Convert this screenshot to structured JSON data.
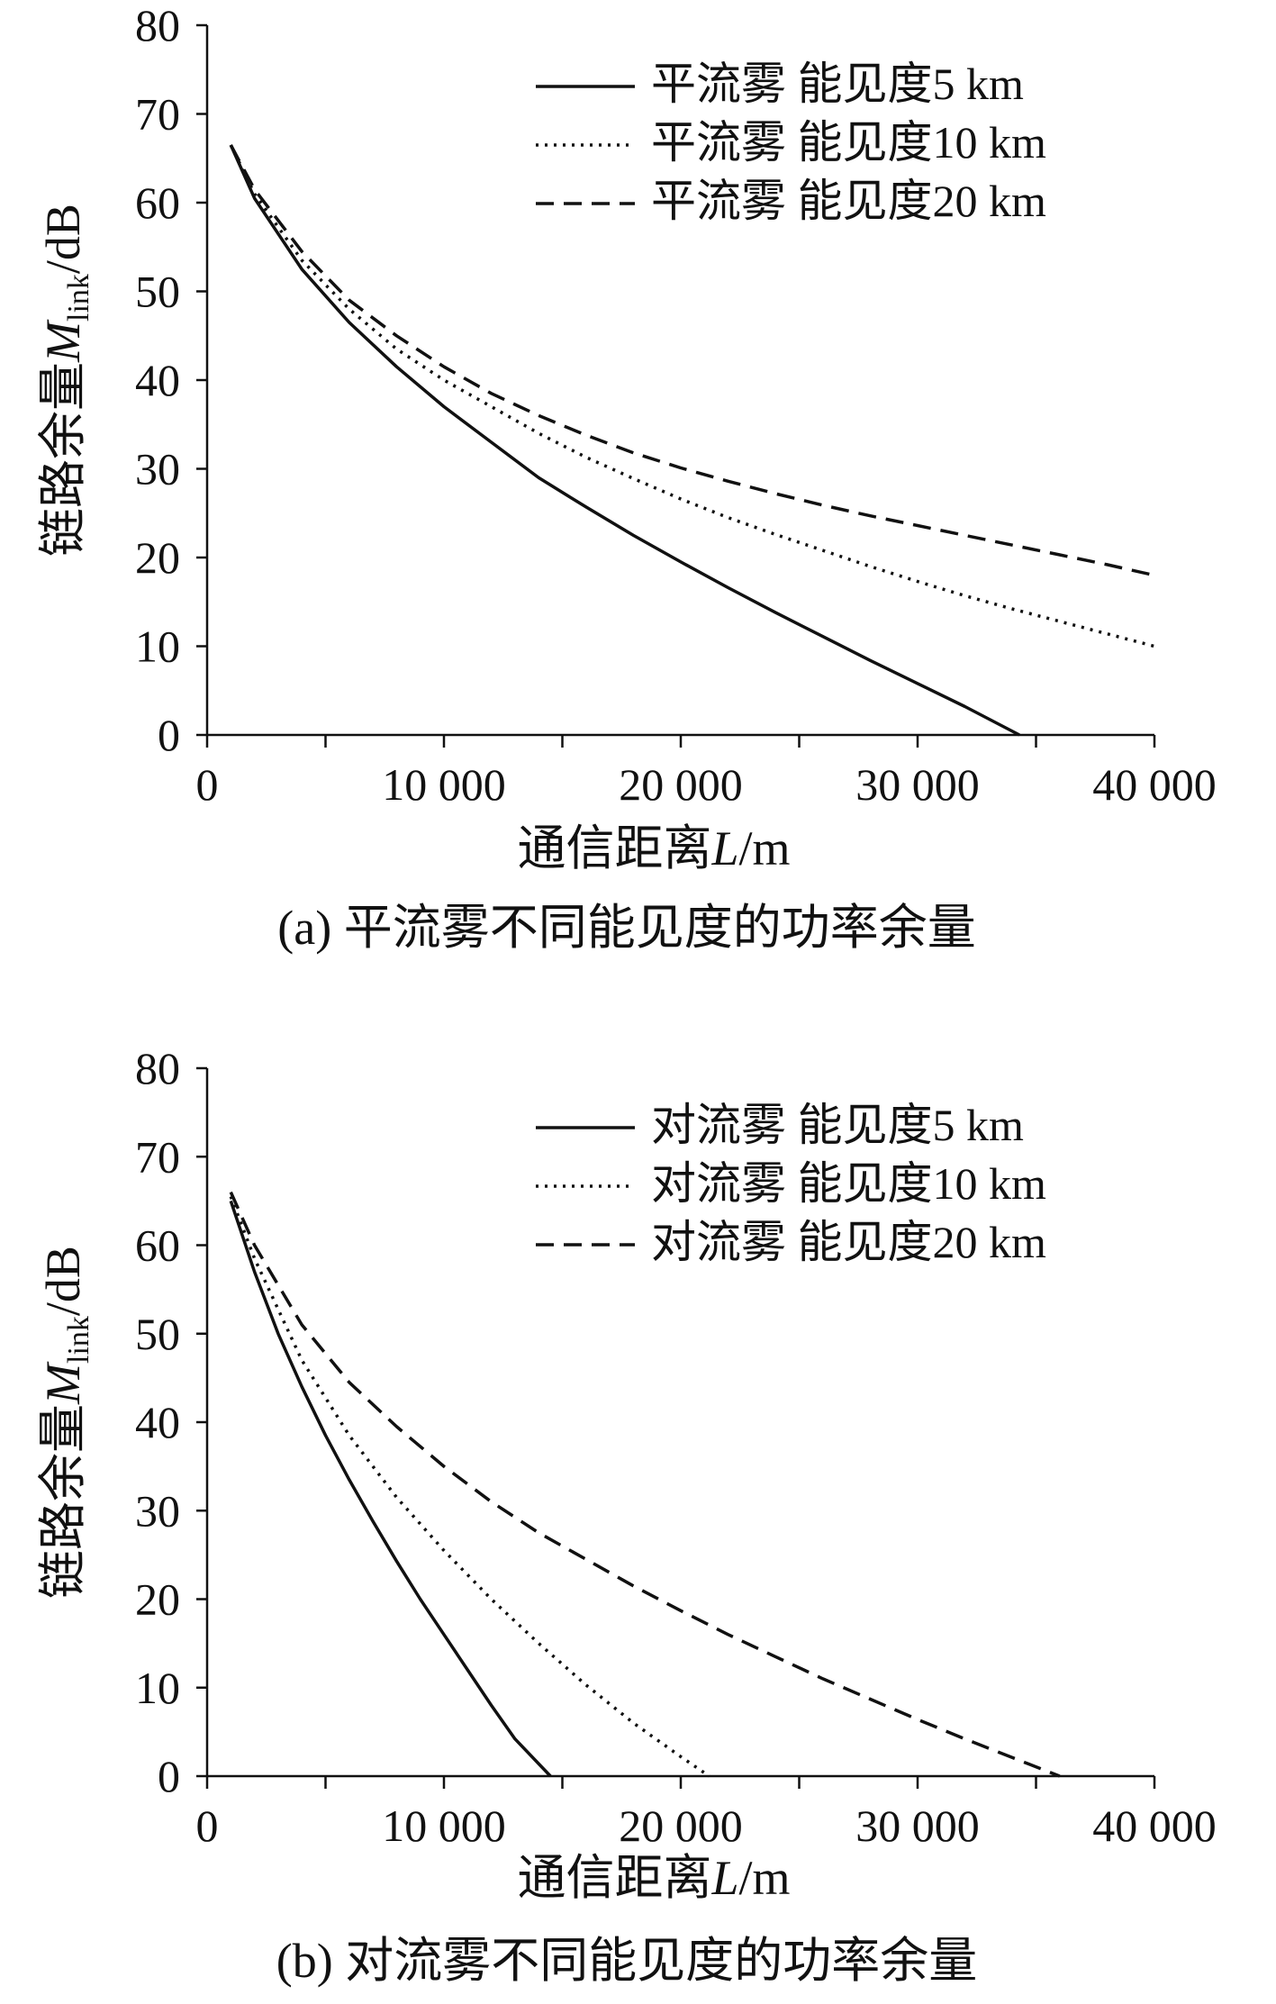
{
  "chart_data": [
    {
      "type": "line",
      "caption": "(a) 平流雾不同能见度的功率余量",
      "xlabel_prefix": "通信距离",
      "xlabel_var": "L",
      "xlabel_unit": "/m",
      "ylabel_prefix": "链路余量",
      "ylabel_var": "M",
      "ylabel_sub": "link",
      "ylabel_unit": "/dB",
      "xlim": [
        0,
        40000
      ],
      "ylim": [
        0,
        80
      ],
      "xticks": [
        0,
        10000,
        20000,
        30000,
        40000
      ],
      "xtick_labels": [
        "0",
        "10 000",
        "20 000",
        "30 000",
        "40 000"
      ],
      "yticks": [
        0,
        10,
        20,
        30,
        40,
        50,
        60,
        70,
        80
      ],
      "ytick_labels": [
        "0",
        "10",
        "20",
        "30",
        "40",
        "50",
        "60",
        "70",
        "80"
      ],
      "grid": false,
      "legend_position": "top-right",
      "series": [
        {
          "name": "平流雾 能见度5 km",
          "style": "solid",
          "x": [
            1000,
            2000,
            4000,
            6000,
            8000,
            10000,
            12000,
            14000,
            16000,
            18000,
            20000,
            22000,
            24000,
            26000,
            28000,
            30000,
            32000,
            34300
          ],
          "y": [
            66.5,
            60.5,
            52.5,
            46.5,
            41.5,
            37,
            33,
            29,
            25.7,
            22.5,
            19.5,
            16.6,
            13.8,
            11.1,
            8.4,
            5.8,
            3.2,
            0
          ]
        },
        {
          "name": "平流雾 能见度10 km",
          "style": "dotted",
          "x": [
            1000,
            2000,
            4000,
            6000,
            8000,
            10000,
            12000,
            14000,
            16000,
            18000,
            20000,
            22000,
            24000,
            26000,
            28000,
            30000,
            32000,
            34000,
            36000,
            38000,
            40000
          ],
          "y": [
            66.5,
            61,
            53.5,
            48,
            43.5,
            40,
            37,
            34,
            31.3,
            28.9,
            26.6,
            24.5,
            22.6,
            20.8,
            19,
            17.3,
            15.7,
            14.2,
            12.8,
            11.4,
            10
          ]
        },
        {
          "name": "平流雾 能见度20 km",
          "style": "dashed",
          "x": [
            1000,
            2000,
            4000,
            6000,
            8000,
            10000,
            12000,
            14000,
            16000,
            18000,
            20000,
            22000,
            24000,
            26000,
            28000,
            30000,
            32000,
            34000,
            36000,
            38000,
            40000
          ],
          "y": [
            66.5,
            61.5,
            54.5,
            49,
            45,
            41.5,
            38.5,
            36,
            33.8,
            31.8,
            30.1,
            28.6,
            27.2,
            25.9,
            24.7,
            23.6,
            22.5,
            21.4,
            20.3,
            19.2,
            18
          ]
        }
      ]
    },
    {
      "type": "line",
      "caption": "(b) 对流雾不同能见度的功率余量",
      "xlabel_prefix": "通信距离",
      "xlabel_var": "L",
      "xlabel_unit": "/m",
      "ylabel_prefix": "链路余量",
      "ylabel_var": "M",
      "ylabel_sub": "link",
      "ylabel_unit": "/dB",
      "xlim": [
        0,
        40000
      ],
      "ylim": [
        0,
        80
      ],
      "xticks": [
        0,
        10000,
        20000,
        30000,
        40000
      ],
      "xtick_labels": [
        "0",
        "10 000",
        "20 000",
        "30 000",
        "40 000"
      ],
      "yticks": [
        0,
        10,
        20,
        30,
        40,
        50,
        60,
        70,
        80
      ],
      "ytick_labels": [
        "0",
        "10",
        "20",
        "30",
        "40",
        "50",
        "60",
        "70",
        "80"
      ],
      "grid": false,
      "legend_position": "top-right",
      "series": [
        {
          "name": "对流雾 能见度5 km",
          "style": "solid",
          "x": [
            1000,
            2000,
            3000,
            4000,
            5000,
            6000,
            7000,
            8000,
            9000,
            10000,
            11000,
            12000,
            13000,
            14500
          ],
          "y": [
            65,
            57,
            50,
            44,
            38.5,
            33.5,
            28.8,
            24.3,
            20,
            16,
            12,
            8,
            4.2,
            0
          ]
        },
        {
          "name": "对流雾 能见度10 km",
          "style": "dotted",
          "x": [
            1000,
            2000,
            4000,
            6000,
            8000,
            10000,
            12000,
            14000,
            16000,
            18000,
            20000,
            21200
          ],
          "y": [
            65.5,
            58.5,
            47,
            38.5,
            31.5,
            25.5,
            20,
            15,
            10.3,
            6,
            2.2,
            0
          ]
        },
        {
          "name": "对流雾 能见度20 km",
          "style": "dashed",
          "x": [
            1000,
            2000,
            4000,
            6000,
            8000,
            10000,
            12000,
            14000,
            16000,
            18000,
            20000,
            22000,
            24000,
            26000,
            28000,
            30000,
            32000,
            34000,
            36000
          ],
          "y": [
            66,
            60,
            51,
            44.5,
            39.5,
            35,
            31,
            27.5,
            24.5,
            21.5,
            18.7,
            16,
            13.5,
            11,
            8.7,
            6.4,
            4.2,
            2.1,
            0
          ]
        }
      ]
    }
  ]
}
